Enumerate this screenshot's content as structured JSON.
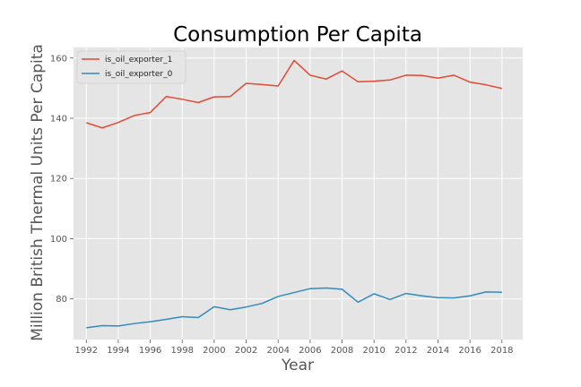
{
  "chart_data": {
    "type": "line",
    "title": "Consumption Per Capita",
    "xlabel": "Year",
    "ylabel": "Million British Thermal Units Per Capita",
    "x": [
      1992,
      1993,
      1994,
      1995,
      1996,
      1997,
      1998,
      1999,
      2000,
      2001,
      2002,
      2003,
      2004,
      2005,
      2006,
      2007,
      2008,
      2009,
      2010,
      2011,
      2012,
      2013,
      2014,
      2015,
      2016,
      2017,
      2018
    ],
    "xlim": [
      1991.2,
      2019.3
    ],
    "ylim": [
      66.5,
      163.5
    ],
    "x_ticks": [
      "1992",
      "1994",
      "1996",
      "1998",
      "2000",
      "2002",
      "2004",
      "2006",
      "2008",
      "2010",
      "2012",
      "2014",
      "2016",
      "2018"
    ],
    "y_ticks": [
      "80",
      "100",
      "120",
      "140",
      "160"
    ],
    "grid": true,
    "legend_position": "top-left",
    "series": [
      {
        "name": "is_oil_exporter_1",
        "color": "#e24a33",
        "values": [
          138.5,
          136.8,
          138.6,
          140.9,
          141.9,
          147.2,
          146.3,
          145.2,
          147.1,
          147.2,
          151.6,
          151.2,
          150.7,
          159.2,
          154.3,
          153.0,
          155.7,
          152.1,
          152.3,
          152.7,
          154.3,
          154.2,
          153.3,
          154.3,
          152.0,
          151.1,
          149.9
        ]
      },
      {
        "name": "is_oil_exporter_0",
        "color": "#348abd",
        "values": [
          70.4,
          71.1,
          71.0,
          71.8,
          72.4,
          73.2,
          74.1,
          73.8,
          77.4,
          76.4,
          77.3,
          78.5,
          80.8,
          82.1,
          83.4,
          83.6,
          83.2,
          78.9,
          81.7,
          79.8,
          81.8,
          81.0,
          80.4,
          80.3,
          81.0,
          82.3,
          82.2
        ]
      }
    ]
  }
}
